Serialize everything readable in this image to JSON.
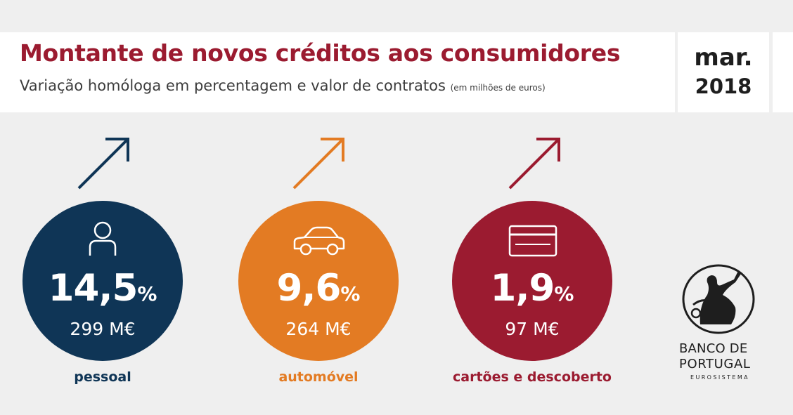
{
  "header": {
    "title": "Montante de novos créditos aos consumidores",
    "subtitle": "Variação homóloga em percentagem e valor de contratos",
    "subtitle_note": "(em milhões de euros)",
    "date_month": "mar.",
    "date_year": "2018"
  },
  "colors": {
    "title": "#9b1b30",
    "pessoal": "#0f3556",
    "automovel": "#e37b23",
    "cartoes": "#9b1b30"
  },
  "categories": [
    {
      "label": "pessoal",
      "percent": "14,5",
      "percent_sign": "%",
      "amount": "299 M€",
      "icon": "person-icon",
      "trend": "up-arrow-icon"
    },
    {
      "label": "automóvel",
      "percent": "9,6",
      "percent_sign": "%",
      "amount": "264 M€",
      "icon": "car-icon",
      "trend": "up-arrow-icon"
    },
    {
      "label": "cartões e descoberto",
      "percent": "1,9",
      "percent_sign": "%",
      "amount": "97 M€",
      "icon": "credit-card-icon",
      "trend": "up-arrow-icon"
    }
  ],
  "branding": {
    "line1": "BANCO DE",
    "line2": "PORTUGAL",
    "line3": "EUROSISTEMA",
    "logo_icon": "banco-de-portugal-seal-icon"
  }
}
